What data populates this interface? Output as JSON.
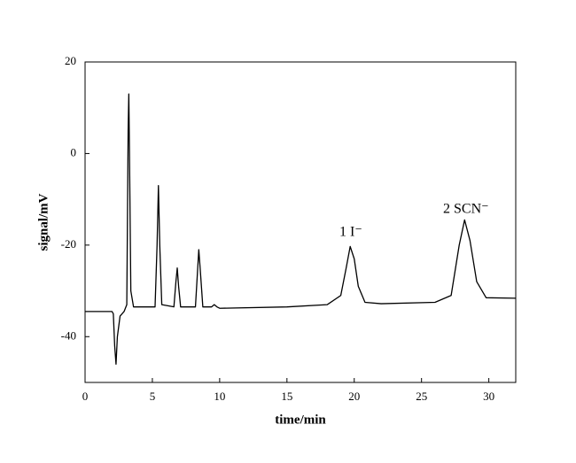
{
  "chart_data": {
    "type": "line",
    "x_label": "time/min",
    "y_label": "signal/mV",
    "annotations": [
      "1 I⁻",
      "2 SCN⁻"
    ],
    "x": [
      0,
      2.0,
      2.1,
      2.2,
      2.3,
      2.4,
      2.6,
      2.9,
      3.1,
      3.2,
      3.25,
      3.3,
      3.4,
      3.6,
      5.2,
      5.35,
      5.45,
      5.55,
      5.7,
      6.6,
      6.75,
      6.85,
      6.95,
      7.1,
      8.2,
      8.35,
      8.45,
      8.55,
      8.75,
      9.4,
      9.6,
      9.8,
      10,
      15,
      18,
      19,
      19.4,
      19.7,
      20.0,
      20.3,
      20.8,
      22,
      26,
      27.2,
      27.8,
      28.2,
      28.6,
      29.1,
      29.8,
      32
    ],
    "values": [
      -34.5,
      -34.5,
      -35,
      -42,
      -46,
      -40,
      -35.5,
      -34.5,
      -33,
      5,
      13,
      0,
      -30,
      -33.5,
      -33.5,
      -20,
      -7,
      -20,
      -33,
      -33.5,
      -28,
      -25,
      -29,
      -33.5,
      -33.5,
      -26,
      -21,
      -25,
      -33.5,
      -33.5,
      -33,
      -33.5,
      -33.8,
      -33.5,
      -33,
      -31,
      -25,
      -20.3,
      -23,
      -29,
      -32.5,
      -32.8,
      -32.5,
      -31,
      -20,
      -14.5,
      -19,
      -28,
      -31.5,
      -31.6
    ],
    "color": "#000000",
    "xlim": [
      0,
      32
    ],
    "xticks": [
      0,
      5,
      10,
      15,
      20,
      25,
      30
    ],
    "ylim": [
      -50,
      20
    ],
    "yticks": [
      -40,
      -20,
      0,
      20
    ],
    "grid": false
  }
}
